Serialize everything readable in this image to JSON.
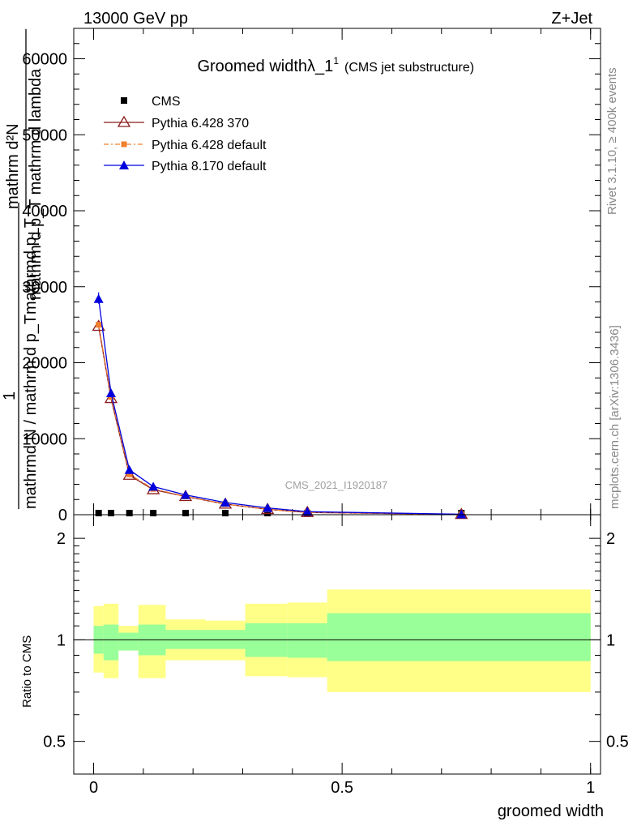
{
  "header": {
    "left": "13000 GeV pp",
    "right": "Z+Jet"
  },
  "side_labels": {
    "rivet": "Rivet 3.1.10, ≥ 400k events",
    "mcplots": "mcplots.cern.ch [arXiv:1306.3436]"
  },
  "watermark": "CMS_2021_I1920187",
  "colors": {
    "cms": "#000000",
    "pythia6_370": "#8b1a1a",
    "pythia6_default": "#f07f2e",
    "pythia8": "#0000dd",
    "band_inner": "#99ff99",
    "band_outer": "#ffff88"
  },
  "chart_data": [
    {
      "type": "line",
      "title_main": "Groomed widthλ_1",
      "title_sup": "1",
      "title_sub": "(CMS jet substructure)",
      "ylabel_line1": "mathrm d²N",
      "ylabel_line2": "mathrm d p_T mathrm d lambda",
      "ylabel_line3": "1",
      "ylabel_line4": "mathrmd N / mathrm d p_Tmathrmd p_T",
      "xlim": [
        -0.04,
        1.02
      ],
      "ylim": [
        0,
        64000
      ],
      "y_ticks": [
        0,
        10000,
        20000,
        30000,
        40000,
        50000,
        60000
      ],
      "y_tick_labels": [
        "0",
        "10000",
        "20000",
        "30000",
        "40000",
        "50000",
        "60000"
      ],
      "legend": [
        "CMS",
        "Pythia 6.428 370",
        "Pythia 6.428 default",
        "Pythia 8.170 default"
      ],
      "series": [
        {
          "name": "CMS",
          "x": [
            0.01,
            0.035,
            0.072,
            0.12,
            0.185,
            0.265,
            0.35,
            0.43,
            0.74
          ],
          "y": [
            150,
            130,
            110,
            90,
            70,
            50,
            30,
            20,
            5
          ]
        },
        {
          "name": "Pythia 6.428 370",
          "x": [
            0.01,
            0.035,
            0.072,
            0.12,
            0.185,
            0.265,
            0.35,
            0.43,
            0.74
          ],
          "y": [
            24800,
            15300,
            5200,
            3300,
            2400,
            1400,
            700,
            300,
            40
          ]
        },
        {
          "name": "Pythia 6.428 default",
          "x": [
            0.01,
            0.035,
            0.072,
            0.12,
            0.185,
            0.265,
            0.35,
            0.43,
            0.74
          ],
          "y": [
            25000,
            15500,
            5300,
            3400,
            2400,
            1400,
            700,
            300,
            40
          ]
        },
        {
          "name": "Pythia 8.170 default",
          "x": [
            0.01,
            0.035,
            0.072,
            0.12,
            0.185,
            0.265,
            0.35,
            0.43,
            0.74
          ],
          "y": [
            28400,
            16000,
            5900,
            3700,
            2600,
            1600,
            900,
            400,
            60
          ]
        }
      ]
    },
    {
      "type": "area",
      "ylabel": "Ratio to CMS",
      "xlabel": "groomed width",
      "xlim": [
        -0.04,
        1.02
      ],
      "ylim": [
        0.4,
        2.35
      ],
      "scale": "log",
      "x_ticks": [
        0,
        0.5,
        1
      ],
      "x_tick_labels": [
        "0",
        "0.5",
        "1"
      ],
      "y_ticks": [
        0.5,
        1,
        2
      ],
      "y_tick_labels": [
        "0.5",
        "1",
        "2"
      ],
      "bins": [
        {
          "lo": 0.0,
          "hi": 0.02,
          "in_lo": 0.91,
          "in_hi": 1.1,
          "out_lo": 0.8,
          "out_hi": 1.26
        },
        {
          "lo": 0.02,
          "hi": 0.05,
          "in_lo": 0.87,
          "in_hi": 1.11,
          "out_lo": 0.77,
          "out_hi": 1.28
        },
        {
          "lo": 0.05,
          "hi": 0.09,
          "in_lo": 0.93,
          "in_hi": 1.05,
          "out_lo": 0.93,
          "out_hi": 1.1
        },
        {
          "lo": 0.09,
          "hi": 0.145,
          "in_lo": 0.9,
          "in_hi": 1.11,
          "out_lo": 0.77,
          "out_hi": 1.27
        },
        {
          "lo": 0.145,
          "hi": 0.225,
          "in_lo": 0.94,
          "in_hi": 1.07,
          "out_lo": 0.87,
          "out_hi": 1.15
        },
        {
          "lo": 0.225,
          "hi": 0.305,
          "in_lo": 0.94,
          "in_hi": 1.07,
          "out_lo": 0.87,
          "out_hi": 1.14
        },
        {
          "lo": 0.305,
          "hi": 0.39,
          "in_lo": 0.89,
          "in_hi": 1.12,
          "out_lo": 0.78,
          "out_hi": 1.28
        },
        {
          "lo": 0.39,
          "hi": 0.47,
          "in_lo": 0.885,
          "in_hi": 1.12,
          "out_lo": 0.775,
          "out_hi": 1.29
        },
        {
          "lo": 0.47,
          "hi": 1.0,
          "in_lo": 0.865,
          "in_hi": 1.2,
          "out_lo": 0.7,
          "out_hi": 1.41
        }
      ]
    }
  ]
}
